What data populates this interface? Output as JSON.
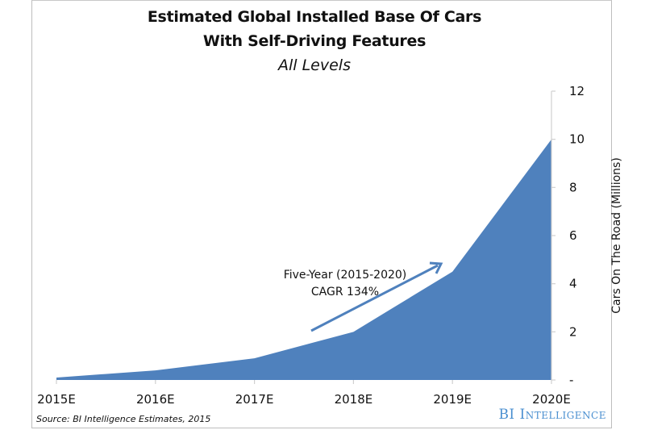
{
  "chart_data": {
    "type": "area",
    "title": "Estimated Global Installed Base Of Cars",
    "title_line2": "With Self-Driving Features",
    "subtitle": "All Levels",
    "categories": [
      "2015E",
      "2016E",
      "2017E",
      "2018E",
      "2019E",
      "2020E"
    ],
    "series": [
      {
        "name": "Cars On The Road (Millions)",
        "values": [
          0.1,
          0.4,
          0.9,
          2.0,
          4.5,
          10.0
        ],
        "color": "#4f81bd"
      }
    ],
    "xlabel": "",
    "ylabel": "Cars On The Road (Millions)",
    "ylim": [
      0,
      12
    ],
    "yticks": [
      0,
      2,
      4,
      6,
      8,
      10,
      12
    ],
    "ytick_labels": [
      "-",
      "2",
      "4",
      "6",
      "8",
      "10",
      "12"
    ],
    "yaxis_side": "right",
    "grid": false,
    "legend": "none",
    "annotation": {
      "line1": "Five-Year (2015-2020)",
      "line2": "CAGR 134%",
      "arrow_color": "#4f81bd"
    },
    "source": "Source: BI Intelligence Estimates, 2015",
    "logo": "BI Intelligence",
    "logo_color": "#4a8fd0"
  }
}
